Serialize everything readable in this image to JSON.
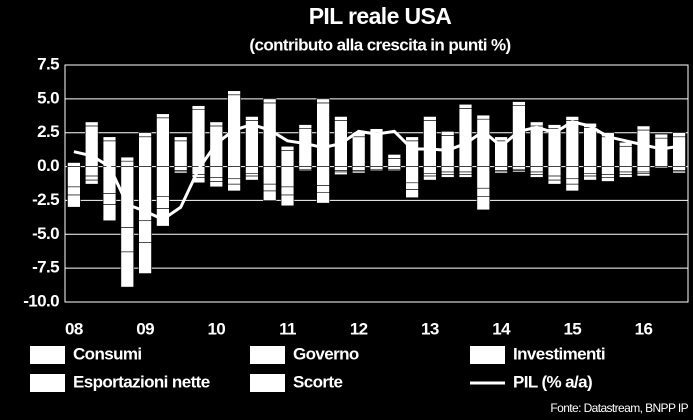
{
  "chart_data": {
    "type": "bar",
    "stacked": true,
    "title": "PIL reale USA",
    "subtitle": "(contributo alla crescita in punti %)",
    "source": "Fonte: Datastream, BNPP IP",
    "categories": [
      "08",
      null,
      null,
      null,
      "09",
      null,
      null,
      null,
      "10",
      null,
      null,
      null,
      "11",
      null,
      null,
      null,
      "12",
      null,
      null,
      null,
      "13",
      null,
      null,
      null,
      "14",
      null,
      null,
      null,
      "15",
      null,
      null,
      null,
      "16",
      null,
      null
    ],
    "series": [
      {
        "name": "Consumi",
        "color": "#ffffff",
        "values": [
          0.0,
          3.0,
          1.9,
          0.4,
          2.2,
          3.6,
          1.9,
          4.2,
          3.0,
          5.3,
          3.4,
          4.7,
          1.2,
          2.8,
          4.7,
          3.4,
          2.2,
          2.5,
          0.6,
          1.9,
          3.4,
          2.3,
          4.3,
          3.5,
          1.9,
          4.5,
          3.0,
          2.8,
          3.4,
          2.9,
          2.2,
          1.5,
          2.7,
          2.1,
          2.2
        ]
      },
      {
        "name": "Governo",
        "color": "#ffffff",
        "values": [
          0.3,
          0.3,
          0.3,
          0.3,
          0.3,
          0.3,
          0.3,
          0.3,
          0.3,
          0.3,
          0.3,
          0.3,
          0.3,
          0.3,
          0.3,
          0.3,
          0.3,
          0.3,
          0.3,
          0.3,
          0.3,
          0.3,
          0.3,
          0.3,
          0.3,
          0.3,
          0.3,
          0.3,
          0.3,
          0.3,
          0.3,
          0.3,
          0.3,
          0.3,
          0.3
        ]
      },
      {
        "name": "Investimenti",
        "color": "#ffffff",
        "values": [
          -1.5,
          -0.7,
          -2.0,
          -4.5,
          -4.0,
          -2.2,
          -0.3,
          -0.6,
          -0.8,
          -0.9,
          -0.5,
          -1.3,
          -1.5,
          -0.2,
          -1.4,
          -0.3,
          -0.3,
          -0.2,
          -0.2,
          -1.2,
          -0.5,
          -0.4,
          -0.4,
          -1.6,
          -0.3,
          -0.2,
          -0.4,
          -0.7,
          -0.9,
          -0.5,
          -0.6,
          -0.4,
          -0.4,
          -0.1,
          -0.3
        ]
      },
      {
        "name": "Esportazioni nette",
        "color": "#ffffff",
        "values": [
          -0.6,
          -0.3,
          -0.8,
          -1.8,
          -1.6,
          -0.9,
          -0.1,
          -0.2,
          -0.3,
          -0.4,
          -0.2,
          -0.5,
          -0.6,
          -0.1,
          -0.5,
          -0.1,
          -0.1,
          -0.1,
          -0.1,
          -0.5,
          -0.2,
          -0.2,
          -0.2,
          -0.6,
          -0.1,
          -0.1,
          -0.2,
          -0.3,
          -0.4,
          -0.2,
          -0.2,
          -0.2,
          -0.1,
          0,
          -0.1
        ]
      },
      {
        "name": "Scorte",
        "color": "#ffffff",
        "values": [
          -0.9,
          -0.3,
          -1.2,
          -2.6,
          -2.3,
          -1.3,
          -0.1,
          -0.4,
          -0.4,
          -0.5,
          -0.3,
          -0.7,
          -0.8,
          0,
          -0.8,
          -0.2,
          -0.1,
          0,
          0,
          -0.6,
          -0.3,
          -0.2,
          -0.2,
          -1.0,
          -0.1,
          -0.1,
          -0.2,
          -0.3,
          -0.5,
          -0.3,
          -0.3,
          -0.2,
          -0.2,
          0,
          -0.1
        ]
      },
      {
        "name": "PIL (% a/a)",
        "color": "#ffffff",
        "type": "line",
        "values": [
          1.1,
          0.8,
          0.0,
          -2.8,
          -3.3,
          -3.9,
          -3.0,
          -0.2,
          1.7,
          2.7,
          3.1,
          2.7,
          1.9,
          1.7,
          1.4,
          1.7,
          2.6,
          2.4,
          2.6,
          1.3,
          1.3,
          1.2,
          1.7,
          2.6,
          1.5,
          2.6,
          2.9,
          2.5,
          3.3,
          3.0,
          2.2,
          1.9,
          1.6,
          1.3,
          1.5
        ]
      }
    ],
    "ylim": [
      -10,
      7.5
    ],
    "yticks": [
      {
        "value": -10,
        "label": "-10.0"
      },
      -7.5,
      {
        "value": -5,
        "label": "-5.0"
      },
      -2.5,
      {
        "value": 0,
        "label": "0.0"
      },
      2.5,
      {
        "value": 5,
        "label": "5.0"
      },
      7.5
    ],
    "grid": true
  }
}
